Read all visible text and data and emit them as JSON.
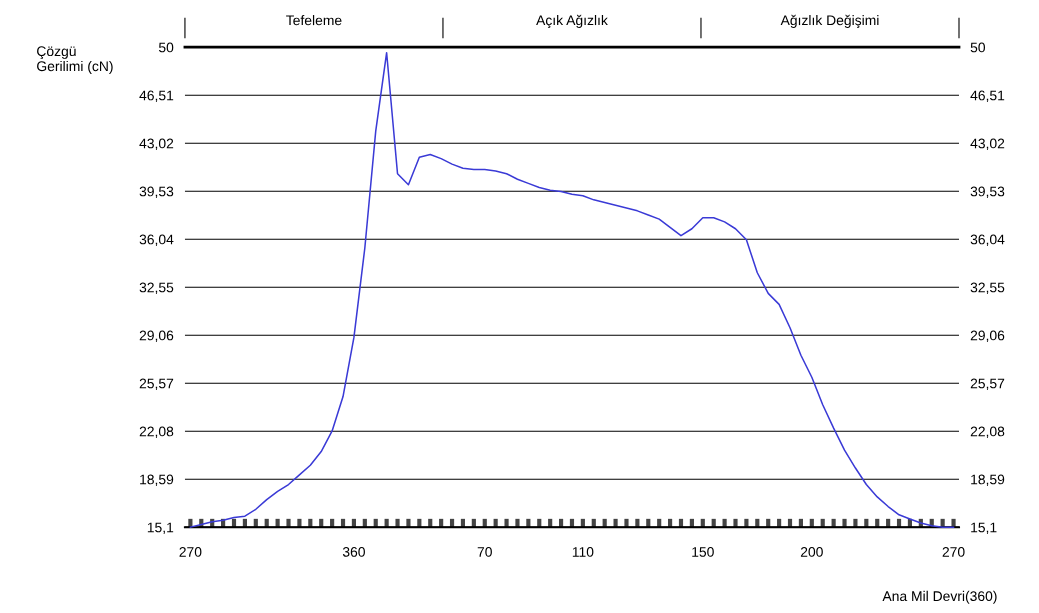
{
  "chart_data": {
    "type": "line",
    "xlabel": "Ana Mil Devri(360)",
    "ylabel": "Çözgü\nGerilimi (cN)",
    "categories": [
      "270",
      null,
      null,
      null,
      null,
      null,
      null,
      null,
      null,
      null,
      null,
      null,
      null,
      null,
      null,
      "360",
      null,
      null,
      null,
      null,
      null,
      null,
      null,
      null,
      null,
      null,
      null,
      "70",
      null,
      null,
      null,
      null,
      null,
      null,
      null,
      null,
      "110",
      null,
      null,
      null,
      null,
      null,
      null,
      null,
      null,
      null,
      null,
      "150",
      null,
      null,
      null,
      null,
      null,
      null,
      null,
      null,
      null,
      "200",
      null,
      null,
      null,
      null,
      null,
      null,
      null,
      null,
      null,
      null,
      null,
      null,
      "270"
    ],
    "series": [
      {
        "color": "#3a3ad6",
        "values": [
          15.1,
          15.3,
          15.5,
          15.6,
          15.8,
          15.9,
          16.4,
          17.1,
          17.7,
          18.2,
          18.9,
          19.6,
          20.6,
          22.1,
          24.6,
          28.9,
          35.4,
          43.9,
          49.6,
          40.8,
          40.0,
          42.0,
          42.2,
          41.9,
          41.5,
          41.2,
          41.1,
          41.1,
          41.0,
          40.8,
          40.4,
          40.1,
          39.8,
          39.6,
          39.5,
          39.3,
          39.2,
          38.9,
          38.7,
          38.5,
          38.3,
          38.1,
          37.8,
          37.5,
          36.9,
          36.3,
          36.8,
          37.6,
          37.6,
          37.3,
          36.8,
          36.0,
          33.6,
          32.1,
          31.3,
          29.6,
          27.6,
          26.0,
          24.0,
          22.3,
          20.7,
          19.4,
          18.2,
          17.3,
          16.6,
          16.0,
          15.7,
          15.4,
          15.2,
          15.1,
          15.1
        ]
      }
    ],
    "ylim": [
      15.1,
      50
    ],
    "yticks": [
      {
        "value": 15.1,
        "label": "15,1"
      },
      {
        "value": 18.59,
        "label": "18,59"
      },
      {
        "value": 22.08,
        "label": "22,08"
      },
      {
        "value": 25.57,
        "label": "25,57"
      },
      {
        "value": 29.06,
        "label": "29,06"
      },
      {
        "value": 32.55,
        "label": "32,55"
      },
      {
        "value": 36.04,
        "label": "36,04"
      },
      {
        "value": 39.53,
        "label": "39,53"
      },
      {
        "value": 43.02,
        "label": "43,02"
      },
      {
        "value": 46.51,
        "label": "46,51"
      },
      {
        "value": 50,
        "label": "50"
      }
    ],
    "y2lim": [
      15.1,
      50
    ],
    "y2ticks": [
      {
        "value": 15.1,
        "label": "15,1"
      },
      {
        "value": 18.59,
        "label": "18,59"
      },
      {
        "value": 22.08,
        "label": "22,08"
      },
      {
        "value": 25.57,
        "label": "25,57"
      },
      {
        "value": 29.06,
        "label": "29,06"
      },
      {
        "value": 32.55,
        "label": "32,55"
      },
      {
        "value": 36.04,
        "label": "36,04"
      },
      {
        "value": 39.53,
        "label": "39,53"
      },
      {
        "value": 43.02,
        "label": "43,02"
      },
      {
        "value": 46.51,
        "label": "46,51"
      },
      {
        "value": 50,
        "label": "50"
      }
    ],
    "grid": "y",
    "annotations": [
      "Tefeleme",
      "Açık Ağızlık",
      "Ağızlık Değişimi"
    ]
  }
}
